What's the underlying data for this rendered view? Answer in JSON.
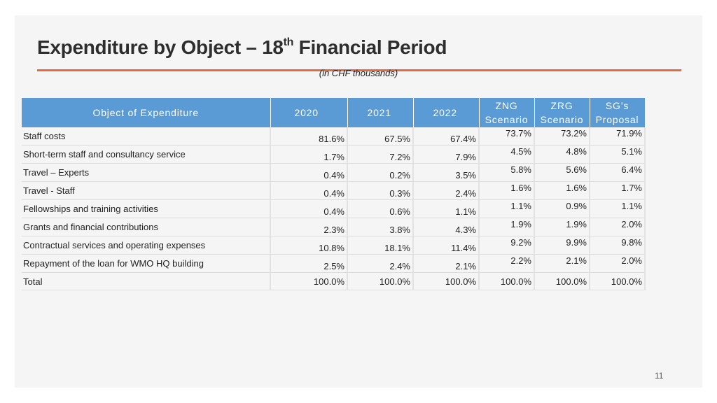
{
  "title": {
    "main": "Expenditure by Object – 18",
    "sup": "th",
    "tail": " Financial Period"
  },
  "subtitle": "(in CHF thousands)",
  "table": {
    "headers": {
      "object": "Object of Expenditure",
      "y2020": "2020",
      "y2021": "2021",
      "y2022": "2022",
      "zng_l1": "ZNG",
      "zng_l2": "Scenario",
      "zrg_l1": "ZRG",
      "zrg_l2": "Scenario",
      "sg_l1": "SG’s",
      "sg_l2": "Proposal"
    },
    "rows": [
      {
        "label": "Staff costs",
        "y2020": "81.6%",
        "y2021": "67.5%",
        "y2022": "67.4%",
        "zng": "73.7%",
        "zrg": "73.2%",
        "sg": "71.9%"
      },
      {
        "label": "Short-term staff and consultancy service",
        "y2020": "1.7%",
        "y2021": "7.2%",
        "y2022": "7.9%",
        "zng": "4.5%",
        "zrg": "4.8%",
        "sg": "5.1%"
      },
      {
        "label": "Travel – Experts",
        "y2020": "0.4%",
        "y2021": "0.2%",
        "y2022": "3.5%",
        "zng": "5.8%",
        "zrg": "5.6%",
        "sg": "6.4%"
      },
      {
        "label": "Travel - Staff",
        "y2020": "0.4%",
        "y2021": "0.3%",
        "y2022": "2.4%",
        "zng": "1.6%",
        "zrg": "1.6%",
        "sg": "1.7%"
      },
      {
        "label": "Fellowships and training activities",
        "y2020": "0.4%",
        "y2021": "0.6%",
        "y2022": "1.1%",
        "zng": "1.1%",
        "zrg": "0.9%",
        "sg": "1.1%"
      },
      {
        "label": "Grants and financial contributions",
        "y2020": "2.3%",
        "y2021": "3.8%",
        "y2022": "4.3%",
        "zng": "1.9%",
        "zrg": "1.9%",
        "sg": "2.0%"
      },
      {
        "label": "Contractual services and operating expenses",
        "y2020": "10.8%",
        "y2021": "18.1%",
        "y2022": "11.4%",
        "zng": "9.2%",
        "zrg": "9.9%",
        "sg": "9.8%"
      },
      {
        "label": "Repayment of the loan for WMO HQ building",
        "y2020": "2.5%",
        "y2021": "2.4%",
        "y2022": "2.1%",
        "zng": "2.2%",
        "zrg": "2.1%",
        "sg": "2.0%"
      },
      {
        "label": "Total",
        "y2020": "100.0%",
        "y2021": "100.0%",
        "y2022": "100.0%",
        "zng": "100.0%",
        "zrg": "100.0%",
        "sg": "100.0%"
      }
    ]
  },
  "page_number": "11",
  "colors": {
    "header_bg": "#5b9bd5",
    "accent_rule": "#e16c44",
    "slide_bg": "#f5f5f5"
  }
}
